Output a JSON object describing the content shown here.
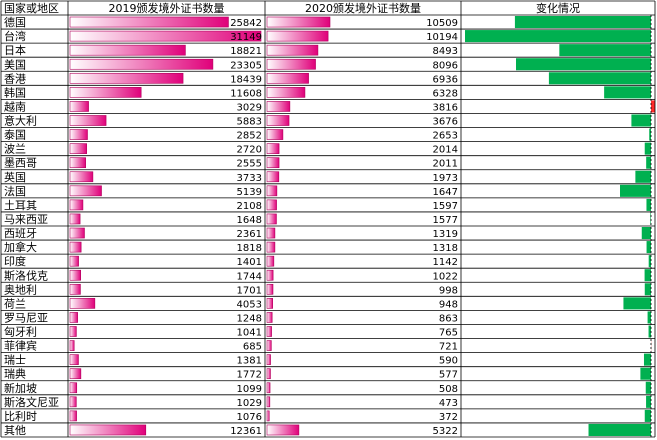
{
  "table": {
    "headers": [
      "国家或地区",
      "2019颁发境外证书数量",
      "2020颁发境外证书数量",
      "变化情况"
    ]
  },
  "colors": {
    "bar_gradient_start": "#ffffff",
    "bar_gradient_end": "#e0007a",
    "bar_border": "#b0005c",
    "increase": "#ff2a2a",
    "decrease": "#00b050",
    "grid": "#000000"
  },
  "chart_data": {
    "type": "table",
    "title": "",
    "columns": [
      "国家或地区",
      "2019颁发境外证书数量",
      "2020颁发境外证书数量",
      "变化情况"
    ],
    "categories": [
      "德国",
      "台湾",
      "日本",
      "美国",
      "香港",
      "韩国",
      "越南",
      "意大利",
      "泰国",
      "波兰",
      "墨西哥",
      "英国",
      "法国",
      "土耳其",
      "马来西亚",
      "西班牙",
      "加拿大",
      "印度",
      "斯洛伐克",
      "奥地利",
      "荷兰",
      "罗马尼亚",
      "匈牙利",
      "菲律宾",
      "瑞士",
      "瑞典",
      "新加坡",
      "斯洛文尼亚",
      "比利时",
      "其他"
    ],
    "series": [
      {
        "name": "2019颁发境外证书数量",
        "values": [
          25842,
          31149,
          18821,
          23305,
          18439,
          11608,
          3029,
          5883,
          2852,
          2720,
          2555,
          3733,
          5139,
          2108,
          1648,
          2361,
          1818,
          1401,
          1744,
          1701,
          4053,
          1248,
          1041,
          685,
          1381,
          1772,
          1099,
          1029,
          1076,
          12361
        ]
      },
      {
        "name": "2020颁发境外证书数量",
        "values": [
          10509,
          10194,
          8493,
          8096,
          6936,
          6328,
          3816,
          3676,
          2653,
          2014,
          2011,
          1973,
          1647,
          1597,
          1577,
          1319,
          1318,
          1142,
          1022,
          998,
          948,
          863,
          765,
          721,
          590,
          577,
          508,
          473,
          372,
          5322
        ]
      },
      {
        "name": "变化情况",
        "values": [
          -15333,
          -20955,
          -10328,
          -15209,
          -11503,
          -5280,
          787,
          -2207,
          -199,
          -706,
          -544,
          -1760,
          -3492,
          -511,
          -71,
          -1042,
          -500,
          -259,
          -722,
          -703,
          -3105,
          -385,
          -276,
          36,
          -791,
          -1195,
          -591,
          -556,
          -704,
          -7039
        ]
      }
    ],
    "ranges": {
      "y2019": [
        0,
        31149
      ],
      "y2020": [
        0,
        10509
      ],
      "change": [
        -20955,
        787
      ]
    }
  }
}
